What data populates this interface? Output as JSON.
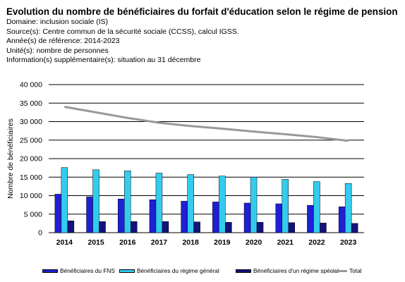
{
  "header": {
    "title": "Evolution du nombre de bénéficiaires du forfait d'éducation selon le régime de pension",
    "domain": "Domaine: inclusion sociale (IS)",
    "source": "Source(s): Centre commun de la sécurité sociale (CCSS), calcul IGSS.",
    "year": "Année(s) de référence: 2014-2023",
    "unit": "Unité(s): nombre de personnes",
    "info": "Information(s) supplémentaire(s): situation au 31 décembre"
  },
  "chart_data": {
    "type": "bar",
    "title": "Evolution du nombre de bénéficiaires du forfait d'éducation selon le régime de pension",
    "ylabel": "Nombre de bénéficiaires",
    "xlabel": "",
    "ylim": [
      0,
      40000
    ],
    "yticks": [
      0,
      5000,
      10000,
      15000,
      20000,
      25000,
      30000,
      35000,
      40000
    ],
    "ytick_labels": [
      "0",
      "5 000",
      "10 000",
      "15 000",
      "20 000",
      "25 000",
      "30 000",
      "35 000",
      "40 000"
    ],
    "grid": true,
    "legend_position": "bottom",
    "categories": [
      "2014",
      "2015",
      "2016",
      "2017",
      "2018",
      "2019",
      "2020",
      "2021",
      "2022",
      "2023"
    ],
    "series": [
      {
        "name": "Bénéficiaires du FNS",
        "kind": "bar",
        "color": "#1F1FD6",
        "values": [
          10400,
          9700,
          9100,
          8900,
          8500,
          8300,
          8000,
          7800,
          7400,
          7000
        ]
      },
      {
        "name": "Bénéficiaires du régime général",
        "kind": "bar",
        "color": "#33CCEE",
        "values": [
          17600,
          17000,
          16700,
          16100,
          15700,
          15300,
          15000,
          14400,
          13800,
          13300
        ]
      },
      {
        "name": "Bénéficiaires d'un régime spécial",
        "kind": "bar",
        "color": "#13137A",
        "values": [
          3200,
          3000,
          3000,
          3000,
          2900,
          2800,
          2800,
          2700,
          2600,
          2500
        ]
      },
      {
        "name": "Total",
        "kind": "line",
        "color": "#999999",
        "values": [
          34000,
          32500,
          31000,
          29700,
          28800,
          28100,
          27300,
          26600,
          25800,
          24800
        ]
      }
    ]
  }
}
